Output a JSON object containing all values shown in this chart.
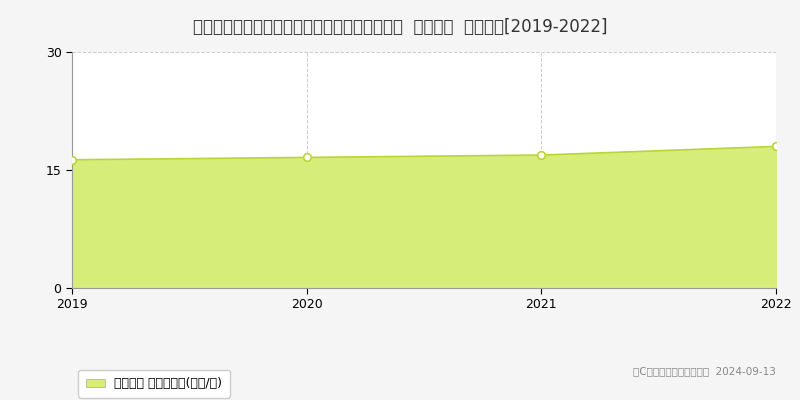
{
  "title": "北海道札幌市北区太平７条４丁目４４番３１外  地価公示  地価推移[2019-2022]",
  "years": [
    2019,
    2020,
    2021,
    2022
  ],
  "values": [
    16.3,
    16.6,
    16.9,
    18.0
  ],
  "ylim": [
    0,
    30
  ],
  "yticks": [
    0,
    15,
    30
  ],
  "line_color": "#bcd435",
  "fill_color": "#d6ed7a",
  "fill_alpha": 1.0,
  "marker_color": "white",
  "marker_edge_color": "#bcd435",
  "background_color": "#f5f5f5",
  "plot_bg_color": "#ffffff",
  "grid_color": "#cccccc",
  "legend_label": "地価公示 平均坪単価(万円/坪)",
  "copyright_text": "（C）土地価格ドットコム  2024-09-13",
  "title_fontsize": 12,
  "axis_fontsize": 9,
  "legend_fontsize": 9
}
